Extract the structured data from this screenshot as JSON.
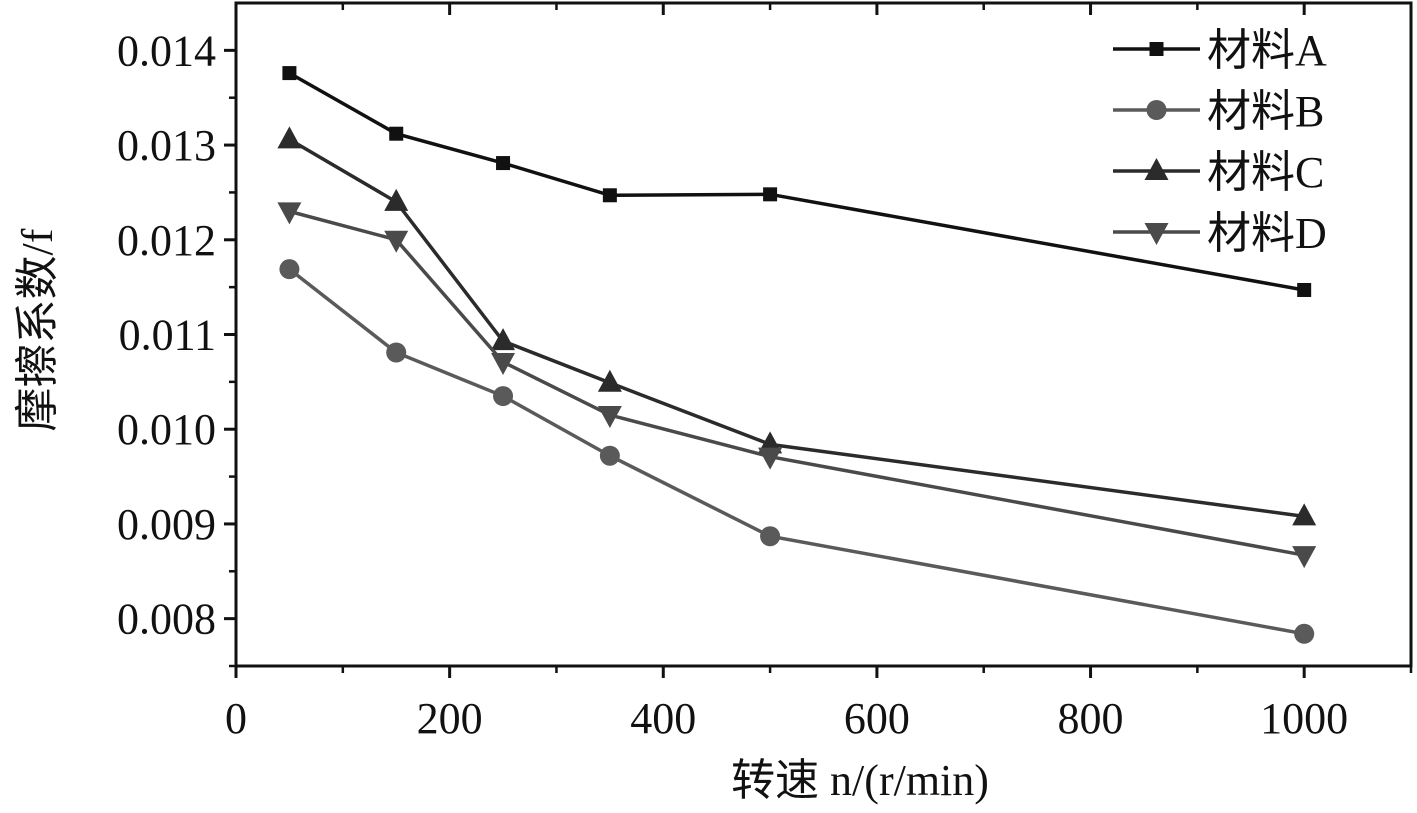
{
  "chart_data": {
    "type": "line",
    "title": "",
    "xlabel": "转速 n/(r/min)",
    "ylabel": "摩擦系数/f",
    "xlim": [
      0,
      1100
    ],
    "ylim": [
      0.0075,
      0.0145
    ],
    "x_ticks": [
      "0",
      "200",
      "400",
      "600",
      "800",
      "1000"
    ],
    "y_ticks": [
      "0.008",
      "0.009",
      "0.010",
      "0.011",
      "0.012",
      "0.013",
      "0.014"
    ],
    "x": [
      50,
      150,
      250,
      350,
      500,
      1000
    ],
    "legend_position": "top-right",
    "grid": false,
    "series": [
      {
        "name": "材料A",
        "marker": "square",
        "color": "#111111",
        "values": [
          0.01376,
          0.01312,
          0.01281,
          0.01247,
          0.01248,
          0.01147
        ]
      },
      {
        "name": "材料B",
        "marker": "circle",
        "color": "#5a5a5a",
        "values": [
          0.01169,
          0.01081,
          0.01035,
          0.00972,
          0.00887,
          0.00784
        ]
      },
      {
        "name": "材料C",
        "marker": "triangle-up",
        "color": "#2b2b2b",
        "values": [
          0.01306,
          0.0124,
          0.01093,
          0.01049,
          0.00984,
          0.00908
        ]
      },
      {
        "name": "材料D",
        "marker": "triangle-down",
        "color": "#4a4a4a",
        "values": [
          0.0123,
          0.012,
          0.01071,
          0.01015,
          0.00971,
          0.00867
        ]
      }
    ]
  }
}
